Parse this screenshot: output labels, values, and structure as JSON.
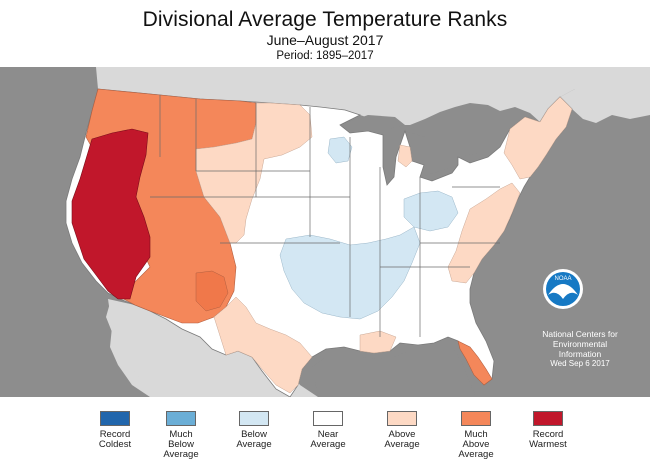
{
  "header": {
    "title": "Divisional Average Temperature Ranks",
    "subtitle": "June–August 2017",
    "period": "Period: 1895–2017"
  },
  "credit": {
    "logo_text": "NOAA",
    "lines": [
      "National Centers for",
      "Environmental",
      "Information"
    ],
    "date": "Wed Sep  6 2017"
  },
  "colors": {
    "record_coldest": "#2166ac",
    "much_below": "#6baed6",
    "below": "#d3e7f3",
    "near": "#ffffff",
    "above": "#fdd9c4",
    "much_above": "#f4875a",
    "record_warmest": "#c1172b",
    "land_outside": "#d9d9d9",
    "water": "#8d8d8d"
  },
  "legend": {
    "items": [
      {
        "lines": [
          "Record",
          "Coldest"
        ],
        "color": "#2166ac"
      },
      {
        "lines": [
          "Much",
          "Below",
          "Average"
        ],
        "color": "#6baed6"
      },
      {
        "lines": [
          "Below",
          "Average"
        ],
        "color": "#d3e7f3"
      },
      {
        "lines": [
          "Near",
          "Average"
        ],
        "color": "#ffffff"
      },
      {
        "lines": [
          "Above",
          "Average"
        ],
        "color": "#fdd9c4"
      },
      {
        "lines": [
          "Much",
          "Above",
          "Average"
        ],
        "color": "#f4875a"
      },
      {
        "lines": [
          "Record",
          "Warmest"
        ],
        "color": "#c1172b"
      }
    ]
  }
}
